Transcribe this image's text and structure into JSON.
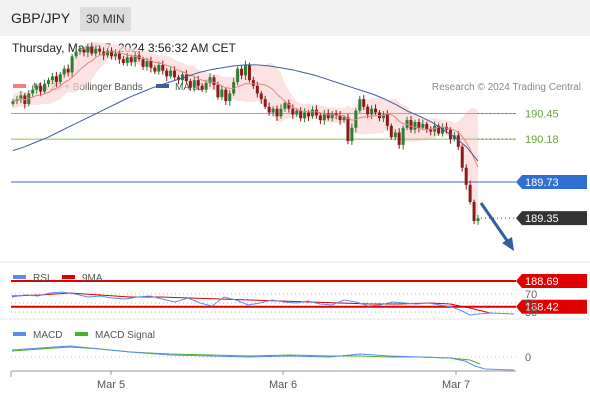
{
  "header": {
    "pair": "GBP/JPY",
    "timeframe": "30 MIN",
    "datetime": "Thursday, March 7, 2024 3:56:32 AM CET"
  },
  "legend": {
    "ma20": "MA 20 + Bollinger Bands",
    "ma50": "MA 50",
    "credit": "Research © 2024 Trading Central",
    "rsi": "RSI",
    "rsi_ma": "9MA",
    "macd": "MACD",
    "macd_signal": "MACD Signal"
  },
  "colors": {
    "ma20": "#f08080",
    "ma50": "#3b5f9e",
    "bands": "#fbd5d5",
    "up": "#2e7d32",
    "down": "#8b1a1a",
    "green_level": "#8cc060",
    "blue_level": "#2f6fd0",
    "red_level": "#e00000",
    "price_tag": "#333333",
    "arrow": "#2f5f9e"
  },
  "chart_data": [
    {
      "type": "candlestick",
      "title": "GBP/JPY 30 MIN",
      "ylim": [
        188.1,
        191.3
      ],
      "x_ticks": [
        "Mar 5",
        "Mar 6",
        "Mar 7"
      ],
      "levels": [
        {
          "value": 190.45,
          "label": "190.45",
          "kind": "resistance"
        },
        {
          "value": 190.18,
          "label": "190.18",
          "kind": "resistance"
        },
        {
          "value": 189.73,
          "label": "189.73",
          "kind": "pivot"
        },
        {
          "value": 188.69,
          "label": "188.69",
          "kind": "support"
        },
        {
          "value": 188.42,
          "label": "188.42",
          "kind": "support"
        }
      ],
      "last_price": {
        "value": 189.35,
        "label": "189.35"
      },
      "closes": [
        190.58,
        190.6,
        190.64,
        190.55,
        190.66,
        190.7,
        190.74,
        190.68,
        190.76,
        190.8,
        190.84,
        190.78,
        190.86,
        190.92,
        190.88,
        191.05,
        191.1,
        191.12,
        191.09,
        191.15,
        191.08,
        191.13,
        191.1,
        191.06,
        191.11,
        191.05,
        191.08,
        191.02,
        190.98,
        191.04,
        190.99,
        191.06,
        191.02,
        190.94,
        191.0,
        190.93,
        190.89,
        190.96,
        190.9,
        190.84,
        190.9,
        190.83,
        190.8,
        190.86,
        190.79,
        190.72,
        190.8,
        190.74,
        190.7,
        190.77,
        190.83,
        190.75,
        190.62,
        190.7,
        190.58,
        190.66,
        190.78,
        190.92,
        190.85,
        190.96,
        190.8,
        190.74,
        190.66,
        190.6,
        190.52,
        190.46,
        190.5,
        190.42,
        190.5,
        190.56,
        190.5,
        190.44,
        190.48,
        190.4,
        190.46,
        190.42,
        190.49,
        190.43,
        190.38,
        190.45,
        190.4,
        190.45,
        190.43,
        190.38,
        190.41,
        190.16,
        190.3,
        190.48,
        190.6,
        190.52,
        190.44,
        190.5,
        190.46,
        190.4,
        190.44,
        190.32,
        190.2,
        190.25,
        190.12,
        190.3,
        190.38,
        190.28,
        190.36,
        190.3,
        190.34,
        190.28,
        190.26,
        190.32,
        190.24,
        190.31,
        190.28,
        190.18,
        190.22,
        190.1,
        189.88,
        189.7,
        189.52,
        189.32,
        189.35
      ],
      "ma50": [
        190.06,
        190.1,
        190.15,
        190.2,
        190.26,
        190.32,
        190.38,
        190.44,
        190.5,
        190.56,
        190.62,
        190.67,
        190.72,
        190.76,
        190.8,
        190.84,
        190.88,
        190.91,
        190.93,
        190.95,
        190.96,
        190.96,
        190.95,
        190.93,
        190.91,
        190.88,
        190.85,
        190.81,
        190.77,
        190.73,
        190.69,
        190.65,
        190.6,
        190.54,
        190.47,
        190.42,
        190.36,
        190.28,
        190.2,
        190.1,
        189.95
      ],
      "rsi_levels": [
        "70",
        "50",
        "30"
      ],
      "macd_levels": [
        "0"
      ]
    }
  ]
}
